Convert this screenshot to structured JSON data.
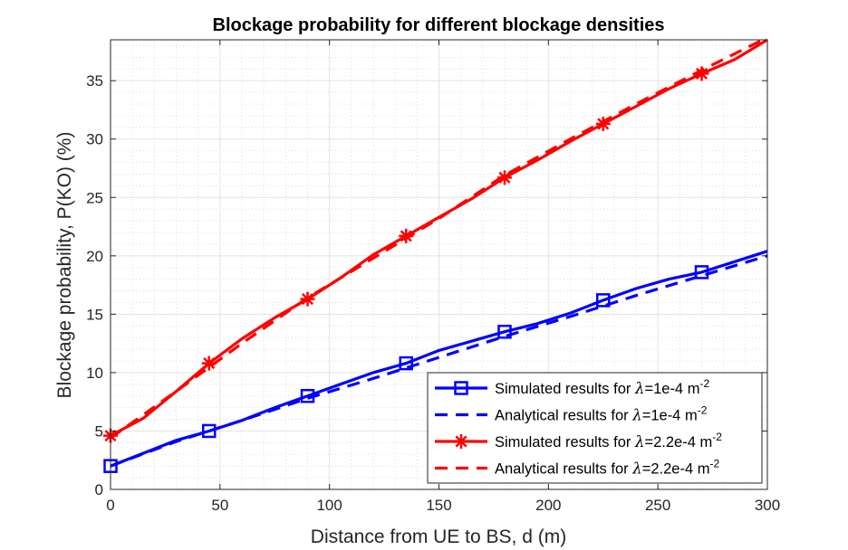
{
  "chart_data": {
    "type": "line",
    "title": "Blockage probability for different blockage densities",
    "xlabel": "Distance from UE to BS, d (m)",
    "ylabel": "Blockage probability, P(KO) (%)",
    "xlim": [
      0,
      300
    ],
    "ylim": [
      0,
      38.5
    ],
    "xticks": [
      0,
      50,
      100,
      150,
      200,
      250,
      300
    ],
    "yticks": [
      0,
      5,
      10,
      15,
      20,
      25,
      30,
      35
    ],
    "grid": true,
    "minor_grid": true,
    "legend_position": "bottom-right",
    "series": [
      {
        "name_prefix": "Simulated results for ",
        "name_lambda": "λ",
        "name_rest": "=1e-4 m",
        "name_sup": "-2",
        "color": "#0000ff",
        "line_style": "solid",
        "marker": "square",
        "x": [
          0,
          15,
          30,
          45,
          60,
          75,
          90,
          105,
          120,
          135,
          150,
          165,
          180,
          195,
          210,
          225,
          240,
          255,
          270,
          285,
          300
        ],
        "y": [
          2.0,
          3.1,
          4.2,
          5.0,
          5.9,
          7.0,
          8.0,
          9.0,
          10.0,
          10.8,
          11.9,
          12.7,
          13.5,
          14.2,
          15.1,
          16.2,
          17.2,
          18.0,
          18.6,
          19.5,
          20.4
        ],
        "marker_x": [
          0,
          45,
          90,
          135,
          180,
          225,
          270
        ]
      },
      {
        "name_prefix": "Analytical results for ",
        "name_lambda": "λ",
        "name_rest": "=1e-4 m",
        "name_sup": "-2",
        "color": "#0000ff",
        "line_style": "dashed",
        "marker": "none",
        "x": [
          0,
          30,
          60,
          90,
          120,
          150,
          180,
          210,
          240,
          270,
          300
        ],
        "y": [
          2.0,
          4.1,
          5.9,
          7.8,
          9.5,
          11.3,
          13.1,
          14.8,
          16.6,
          18.3,
          20.0
        ],
        "marker_x": []
      },
      {
        "name_prefix": "Simulated results for ",
        "name_lambda": "λ",
        "name_rest": "=2.2e-4 m",
        "name_sup": "-2",
        "color": "#ff0000",
        "line_style": "solid",
        "marker": "asterisk",
        "x": [
          0,
          15,
          30,
          45,
          60,
          75,
          90,
          105,
          120,
          135,
          150,
          165,
          180,
          195,
          210,
          225,
          240,
          255,
          270,
          285,
          300
        ],
        "y": [
          4.6,
          6.1,
          8.4,
          10.8,
          12.9,
          14.7,
          16.3,
          18.1,
          20.1,
          21.7,
          23.3,
          24.9,
          26.7,
          28.2,
          29.8,
          31.3,
          32.8,
          34.3,
          35.6,
          36.8,
          38.5
        ],
        "marker_x": [
          0,
          45,
          90,
          135,
          180,
          225,
          270
        ]
      },
      {
        "name_prefix": "Analytical results for ",
        "name_lambda": "λ",
        "name_rest": "=2.2e-4 m",
        "name_sup": "-2",
        "color": "#ff0000",
        "line_style": "dashed",
        "marker": "none",
        "x": [
          0,
          30,
          60,
          90,
          120,
          150,
          180,
          210,
          240,
          270,
          300
        ],
        "y": [
          4.4,
          8.4,
          12.5,
          16.4,
          19.8,
          23.2,
          26.9,
          30.0,
          33.0,
          35.9,
          38.7
        ],
        "marker_x": []
      }
    ]
  }
}
